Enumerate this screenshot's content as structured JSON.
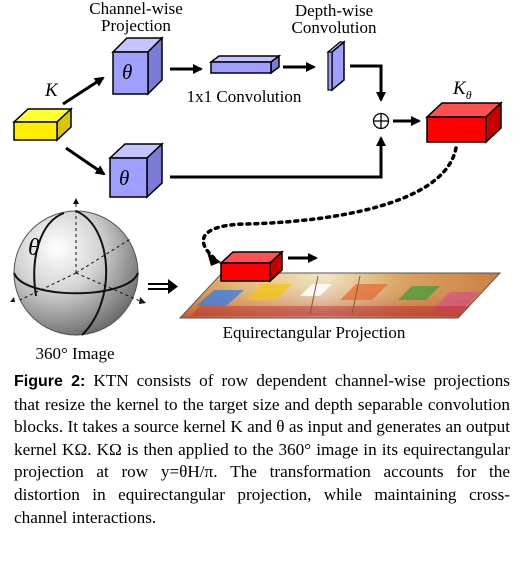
{
  "figure": {
    "labels": {
      "channel_wise": "Channel-wise",
      "projection": "Projection",
      "depth_wise": "Depth-wise",
      "convolution": "Convolution",
      "conv_1x1": "1x1 Convolution",
      "k_input": "K",
      "theta_upper": "θ",
      "theta_lower": "θ",
      "k_theta_main": "K",
      "k_theta_sub": "θ",
      "oplus": "⊕",
      "sphere_theta": "θ",
      "image_360": "360° Image",
      "equirect": "Equirectangular Projection"
    },
    "colors": {
      "input_kernel": "#ffee00",
      "projection_block": "#9f9fff",
      "output_kernel": "#ff0000",
      "sphere": "#c8c8c8"
    }
  },
  "caption": {
    "label": "Figure 2:",
    "text": "KTN consists of row dependent channel-wise projections that resize the kernel to the target size and depth separable convolution blocks. It takes a source kernel K and θ as input and generates an output kernel KΩ. KΩ is then applied to the 360° image in its equirectangular projection at row y=θH/π. The transformation accounts for the distortion in equirectangular projection, while maintaining cross-channel interactions."
  }
}
